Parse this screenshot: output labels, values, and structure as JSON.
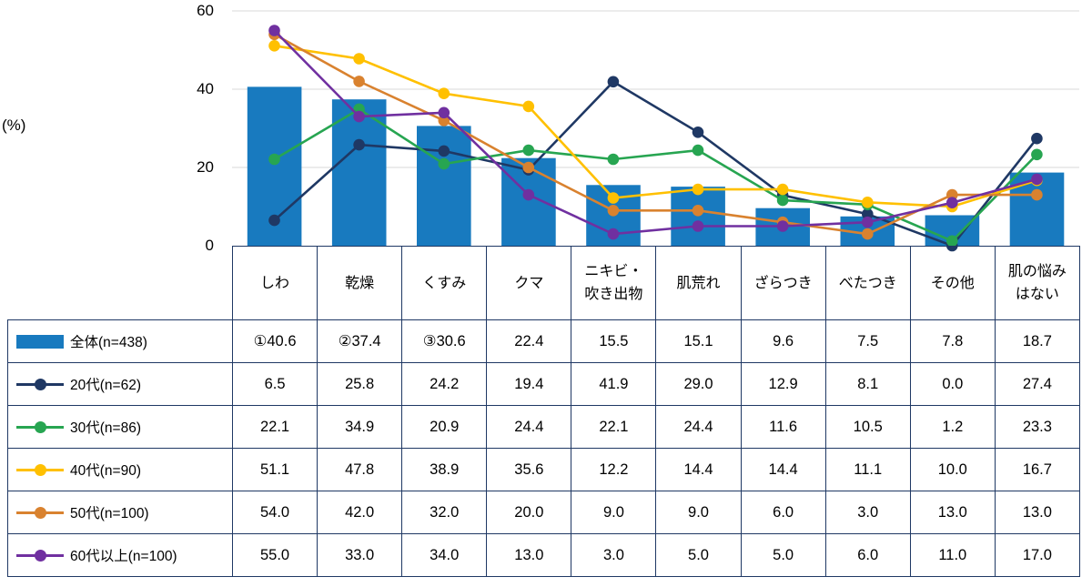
{
  "chart_data": {
    "type": "bar+line",
    "title": "",
    "xlabel": "",
    "ylabel": "(%)",
    "ylim": [
      0,
      60
    ],
    "yticks": [
      0,
      20,
      40,
      60
    ],
    "grid": true,
    "legend_position": "table-left-column",
    "categories": [
      "しわ",
      "乾燥",
      "くすみ",
      "クマ",
      "ニキビ・吹き出物",
      "肌荒れ",
      "ざらつき",
      "べたつき",
      "その他",
      "肌の悩みはない"
    ],
    "series": [
      {
        "name": "全体(n=438)",
        "type": "bar",
        "color": "#187ABF",
        "values": [
          40.6,
          37.4,
          30.6,
          22.4,
          15.5,
          15.1,
          9.6,
          7.5,
          7.8,
          18.7
        ]
      },
      {
        "name": "20代(n=62)",
        "type": "line",
        "color": "#1F3864",
        "values": [
          6.5,
          25.8,
          24.2,
          19.4,
          41.9,
          29.0,
          12.9,
          8.1,
          0.0,
          27.4
        ]
      },
      {
        "name": "30代(n=86)",
        "type": "line",
        "color": "#27A551",
        "values": [
          22.1,
          34.9,
          20.9,
          24.4,
          22.1,
          24.4,
          11.6,
          10.5,
          1.2,
          23.3
        ]
      },
      {
        "name": "40代(n=90)",
        "type": "line",
        "color": "#FFC000",
        "values": [
          51.1,
          47.8,
          38.9,
          35.6,
          12.2,
          14.4,
          14.4,
          11.1,
          10.0,
          16.7
        ]
      },
      {
        "name": "50代(n=100)",
        "type": "line",
        "color": "#D9822F",
        "values": [
          54.0,
          42.0,
          32.0,
          20.0,
          9.0,
          9.0,
          6.0,
          3.0,
          13.0,
          13.0
        ]
      },
      {
        "name": "60代以上(n=100)",
        "type": "line",
        "color": "#7030A0",
        "values": [
          55.0,
          33.0,
          34.0,
          13.0,
          3.0,
          5.0,
          5.0,
          6.0,
          11.0,
          17.0
        ]
      }
    ]
  },
  "table": {
    "border_color": "#1F3864",
    "header_lines": [
      [
        "しわ"
      ],
      [
        "乾燥"
      ],
      [
        "くすみ"
      ],
      [
        "クマ"
      ],
      [
        "ニキビ・",
        "吹き出物"
      ],
      [
        "肌荒れ"
      ],
      [
        "ざらつき"
      ],
      [
        "べたつき"
      ],
      [
        "その他"
      ],
      [
        "肌の悩み",
        "はない"
      ]
    ],
    "rows": [
      {
        "label": "全体(n=438)",
        "swatch": "bar",
        "color": "#187ABF",
        "cells": [
          "①40.6",
          "②37.4",
          "③30.6",
          "22.4",
          "15.5",
          "15.1",
          "9.6",
          "7.5",
          "7.8",
          "18.7"
        ]
      },
      {
        "label": "20代(n=62)",
        "swatch": "line",
        "color": "#1F3864",
        "cells": [
          "6.5",
          "25.8",
          "24.2",
          "19.4",
          "41.9",
          "29.0",
          "12.9",
          "8.1",
          "0.0",
          "27.4"
        ]
      },
      {
        "label": "30代(n=86)",
        "swatch": "line",
        "color": "#27A551",
        "cells": [
          "22.1",
          "34.9",
          "20.9",
          "24.4",
          "22.1",
          "24.4",
          "11.6",
          "10.5",
          "1.2",
          "23.3"
        ]
      },
      {
        "label": "40代(n=90)",
        "swatch": "line",
        "color": "#FFC000",
        "cells": [
          "51.1",
          "47.8",
          "38.9",
          "35.6",
          "12.2",
          "14.4",
          "14.4",
          "11.1",
          "10.0",
          "16.7"
        ]
      },
      {
        "label": "50代(n=100)",
        "swatch": "line",
        "color": "#D9822F",
        "cells": [
          "54.0",
          "42.0",
          "32.0",
          "20.0",
          "9.0",
          "9.0",
          "6.0",
          "3.0",
          "13.0",
          "13.0"
        ]
      },
      {
        "label": "60代以上(n=100)",
        "swatch": "line",
        "color": "#7030A0",
        "cells": [
          "55.0",
          "33.0",
          "34.0",
          "13.0",
          "3.0",
          "5.0",
          "5.0",
          "6.0",
          "11.0",
          "17.0"
        ]
      }
    ]
  },
  "style": {
    "gridline_color": "#D9D9D9"
  }
}
